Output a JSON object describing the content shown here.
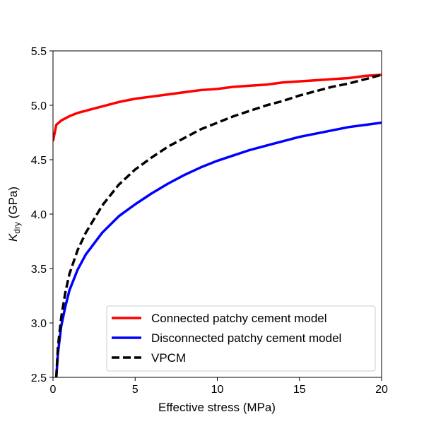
{
  "chart_data": {
    "type": "line",
    "title": "",
    "xlabel": "Effective stress (MPa)",
    "ylabel_main": "K",
    "ylabel_sub": "dry",
    "ylabel_unit": " (GPa)",
    "xlim": [
      0,
      20
    ],
    "ylim": [
      2.5,
      5.5
    ],
    "xticks": [
      "0",
      "5",
      "10",
      "15",
      "20"
    ],
    "yticks": [
      "2.5",
      "3.0",
      "3.5",
      "4.0",
      "4.5",
      "5.0",
      "5.5"
    ],
    "grid": false,
    "legend_position": "lower-right",
    "series": [
      {
        "name": "Connected patchy cement model",
        "color": "#ff0000",
        "style": "solid",
        "x": [
          0.0,
          0.2,
          0.5,
          1,
          1.5,
          2,
          3,
          4,
          5,
          6,
          7,
          8,
          9,
          10,
          11,
          12,
          13,
          14,
          15,
          16,
          17,
          18,
          19,
          20
        ],
        "y": [
          4.67,
          4.82,
          4.86,
          4.9,
          4.93,
          4.95,
          4.99,
          5.03,
          5.06,
          5.08,
          5.1,
          5.12,
          5.14,
          5.15,
          5.17,
          5.18,
          5.19,
          5.21,
          5.22,
          5.23,
          5.24,
          5.25,
          5.27,
          5.28
        ]
      },
      {
        "name": "Disconnected patchy cement model",
        "color": "#0000ff",
        "style": "solid",
        "x": [
          0.2,
          0.3,
          0.5,
          0.75,
          1,
          1.5,
          2,
          3,
          4,
          5,
          6,
          7,
          8,
          9,
          10,
          11,
          12,
          13,
          14,
          15,
          16,
          17,
          18,
          19,
          20
        ],
        "y": [
          2.5,
          2.72,
          2.97,
          3.15,
          3.3,
          3.49,
          3.63,
          3.83,
          3.98,
          4.09,
          4.19,
          4.28,
          4.36,
          4.43,
          4.49,
          4.54,
          4.59,
          4.63,
          4.67,
          4.71,
          4.74,
          4.77,
          4.8,
          4.82,
          4.84
        ]
      },
      {
        "name": "VPCM",
        "color": "#000000",
        "style": "dashed",
        "x": [
          0.2,
          0.3,
          0.5,
          0.75,
          1,
          1.5,
          2,
          3,
          4,
          5,
          6,
          7,
          8,
          9,
          10,
          11,
          12,
          13,
          14,
          15,
          16,
          17,
          18,
          19,
          20
        ],
        "y": [
          2.5,
          2.78,
          3.05,
          3.28,
          3.45,
          3.67,
          3.83,
          4.08,
          4.27,
          4.41,
          4.52,
          4.62,
          4.7,
          4.78,
          4.84,
          4.9,
          4.95,
          5.0,
          5.04,
          5.09,
          5.13,
          5.17,
          5.2,
          5.24,
          5.28
        ]
      }
    ]
  }
}
